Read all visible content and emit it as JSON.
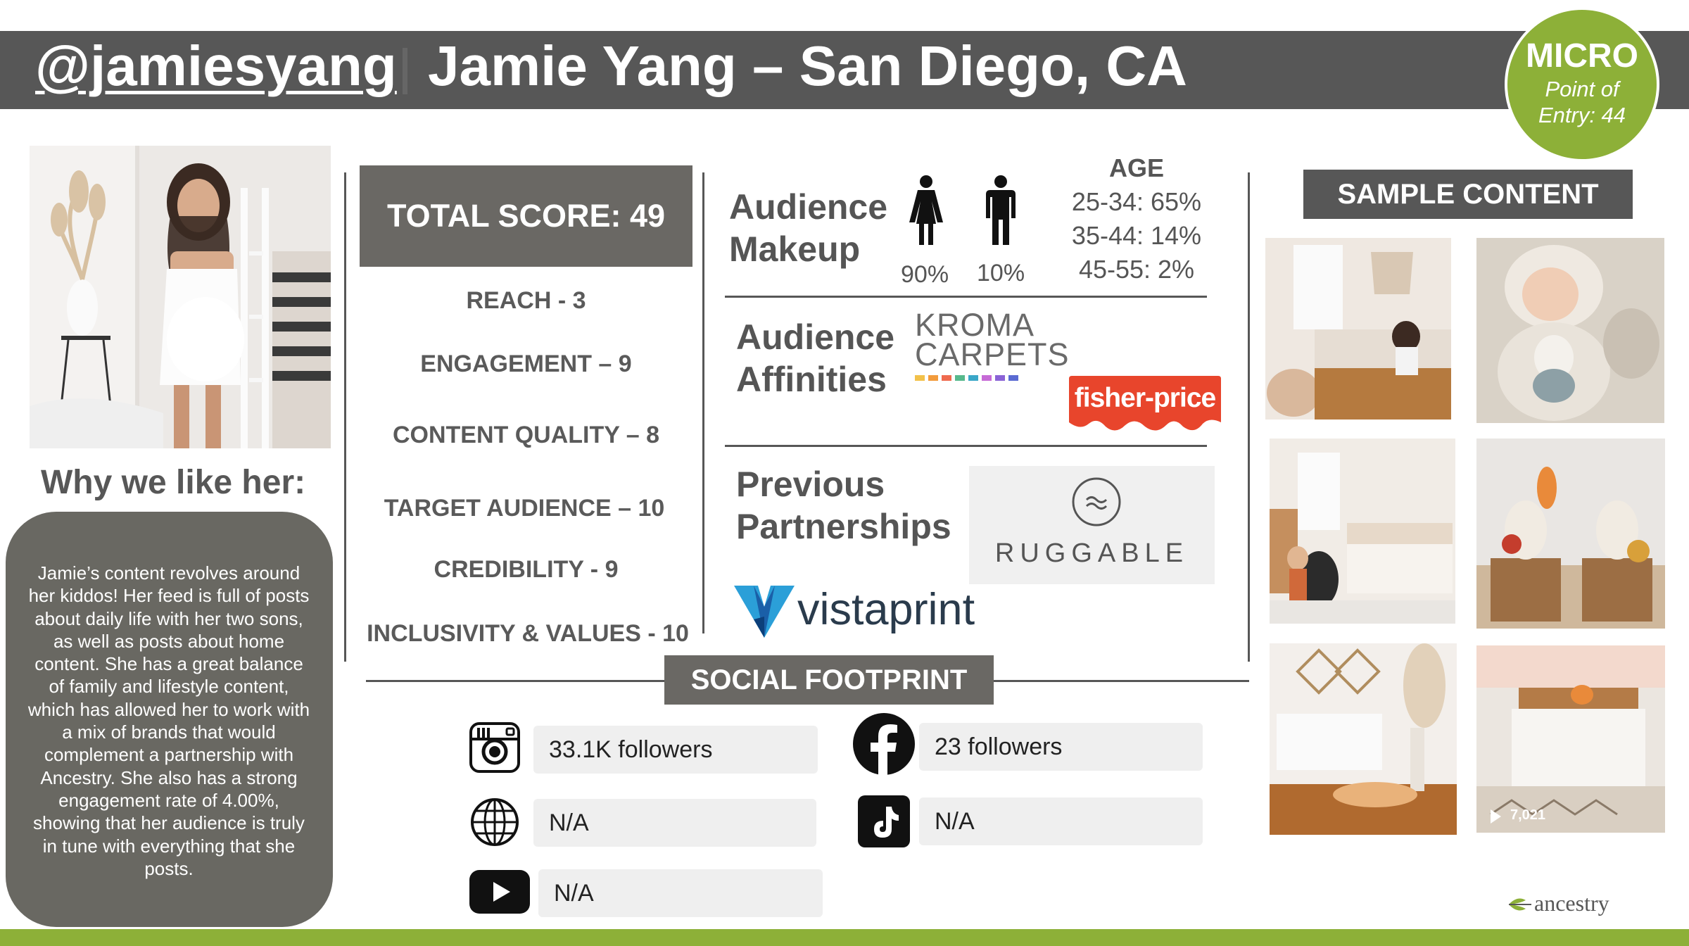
{
  "header": {
    "handle": "@jamiesyang",
    "name": "Jamie Yang – San Diego, CA"
  },
  "badge": {
    "tier": "MICRO",
    "entry": "Point of Entry: 44"
  },
  "profile": {
    "why_heading": "Why we like her:",
    "bio": "Jamie’s content revolves around her kiddos! Her feed is full of posts about daily life with her two sons, as well as posts about home content. She has a great balance of family and lifestyle content, which has allowed her to work with a mix of brands that would complement a partnership with Ancestry. She also has a strong engagement rate of 4.00%, showing that her audience is truly in tune with everything that she posts."
  },
  "score": {
    "total": "TOTAL SCORE: 49",
    "items": [
      "REACH - 3",
      "ENGAGEMENT – 9",
      "CONTENT QUALITY – 8",
      "TARGET AUDIENCE – 10",
      "CREDIBILITY - 9",
      "INCLUSIVITY & VALUES - 10"
    ]
  },
  "audience": {
    "makeup_label_1": "Audience",
    "makeup_label_2": "Makeup",
    "female_pct": "90%",
    "male_pct": "10%",
    "age_title": "AGE",
    "age_ranges": [
      "25-34: 65%",
      "35-44: 14%",
      "45-55: 2%"
    ],
    "affinities_label_1": "Audience",
    "affinities_label_2": "Affinities",
    "affinity_brands": {
      "kroma_1": "KROMA",
      "kroma_2": "CARPETS",
      "fisher": "fisher-price"
    },
    "partnerships_label_1": "Previous",
    "partnerships_label_2": "Partnerships",
    "partner_brands": {
      "ruggable": "RUGGABLE",
      "vistaprint": "vistaprint"
    }
  },
  "social": {
    "title": "SOCIAL FOOTPRINT",
    "instagram": "33.1K followers",
    "facebook": "23 followers",
    "web": "N/A",
    "tiktok": "N/A",
    "youtube": "N/A"
  },
  "sample": {
    "title": "SAMPLE CONTENT",
    "video_views": "7,021"
  },
  "footer": {
    "brand": "ancestry"
  },
  "colors": {
    "header_gray": "#575757",
    "box_gray": "#6a6864",
    "accent_green": "#8db038",
    "pill_gray": "#efefef",
    "fisher_red": "#e8452c",
    "vista_blue": "#1f6fb5"
  }
}
